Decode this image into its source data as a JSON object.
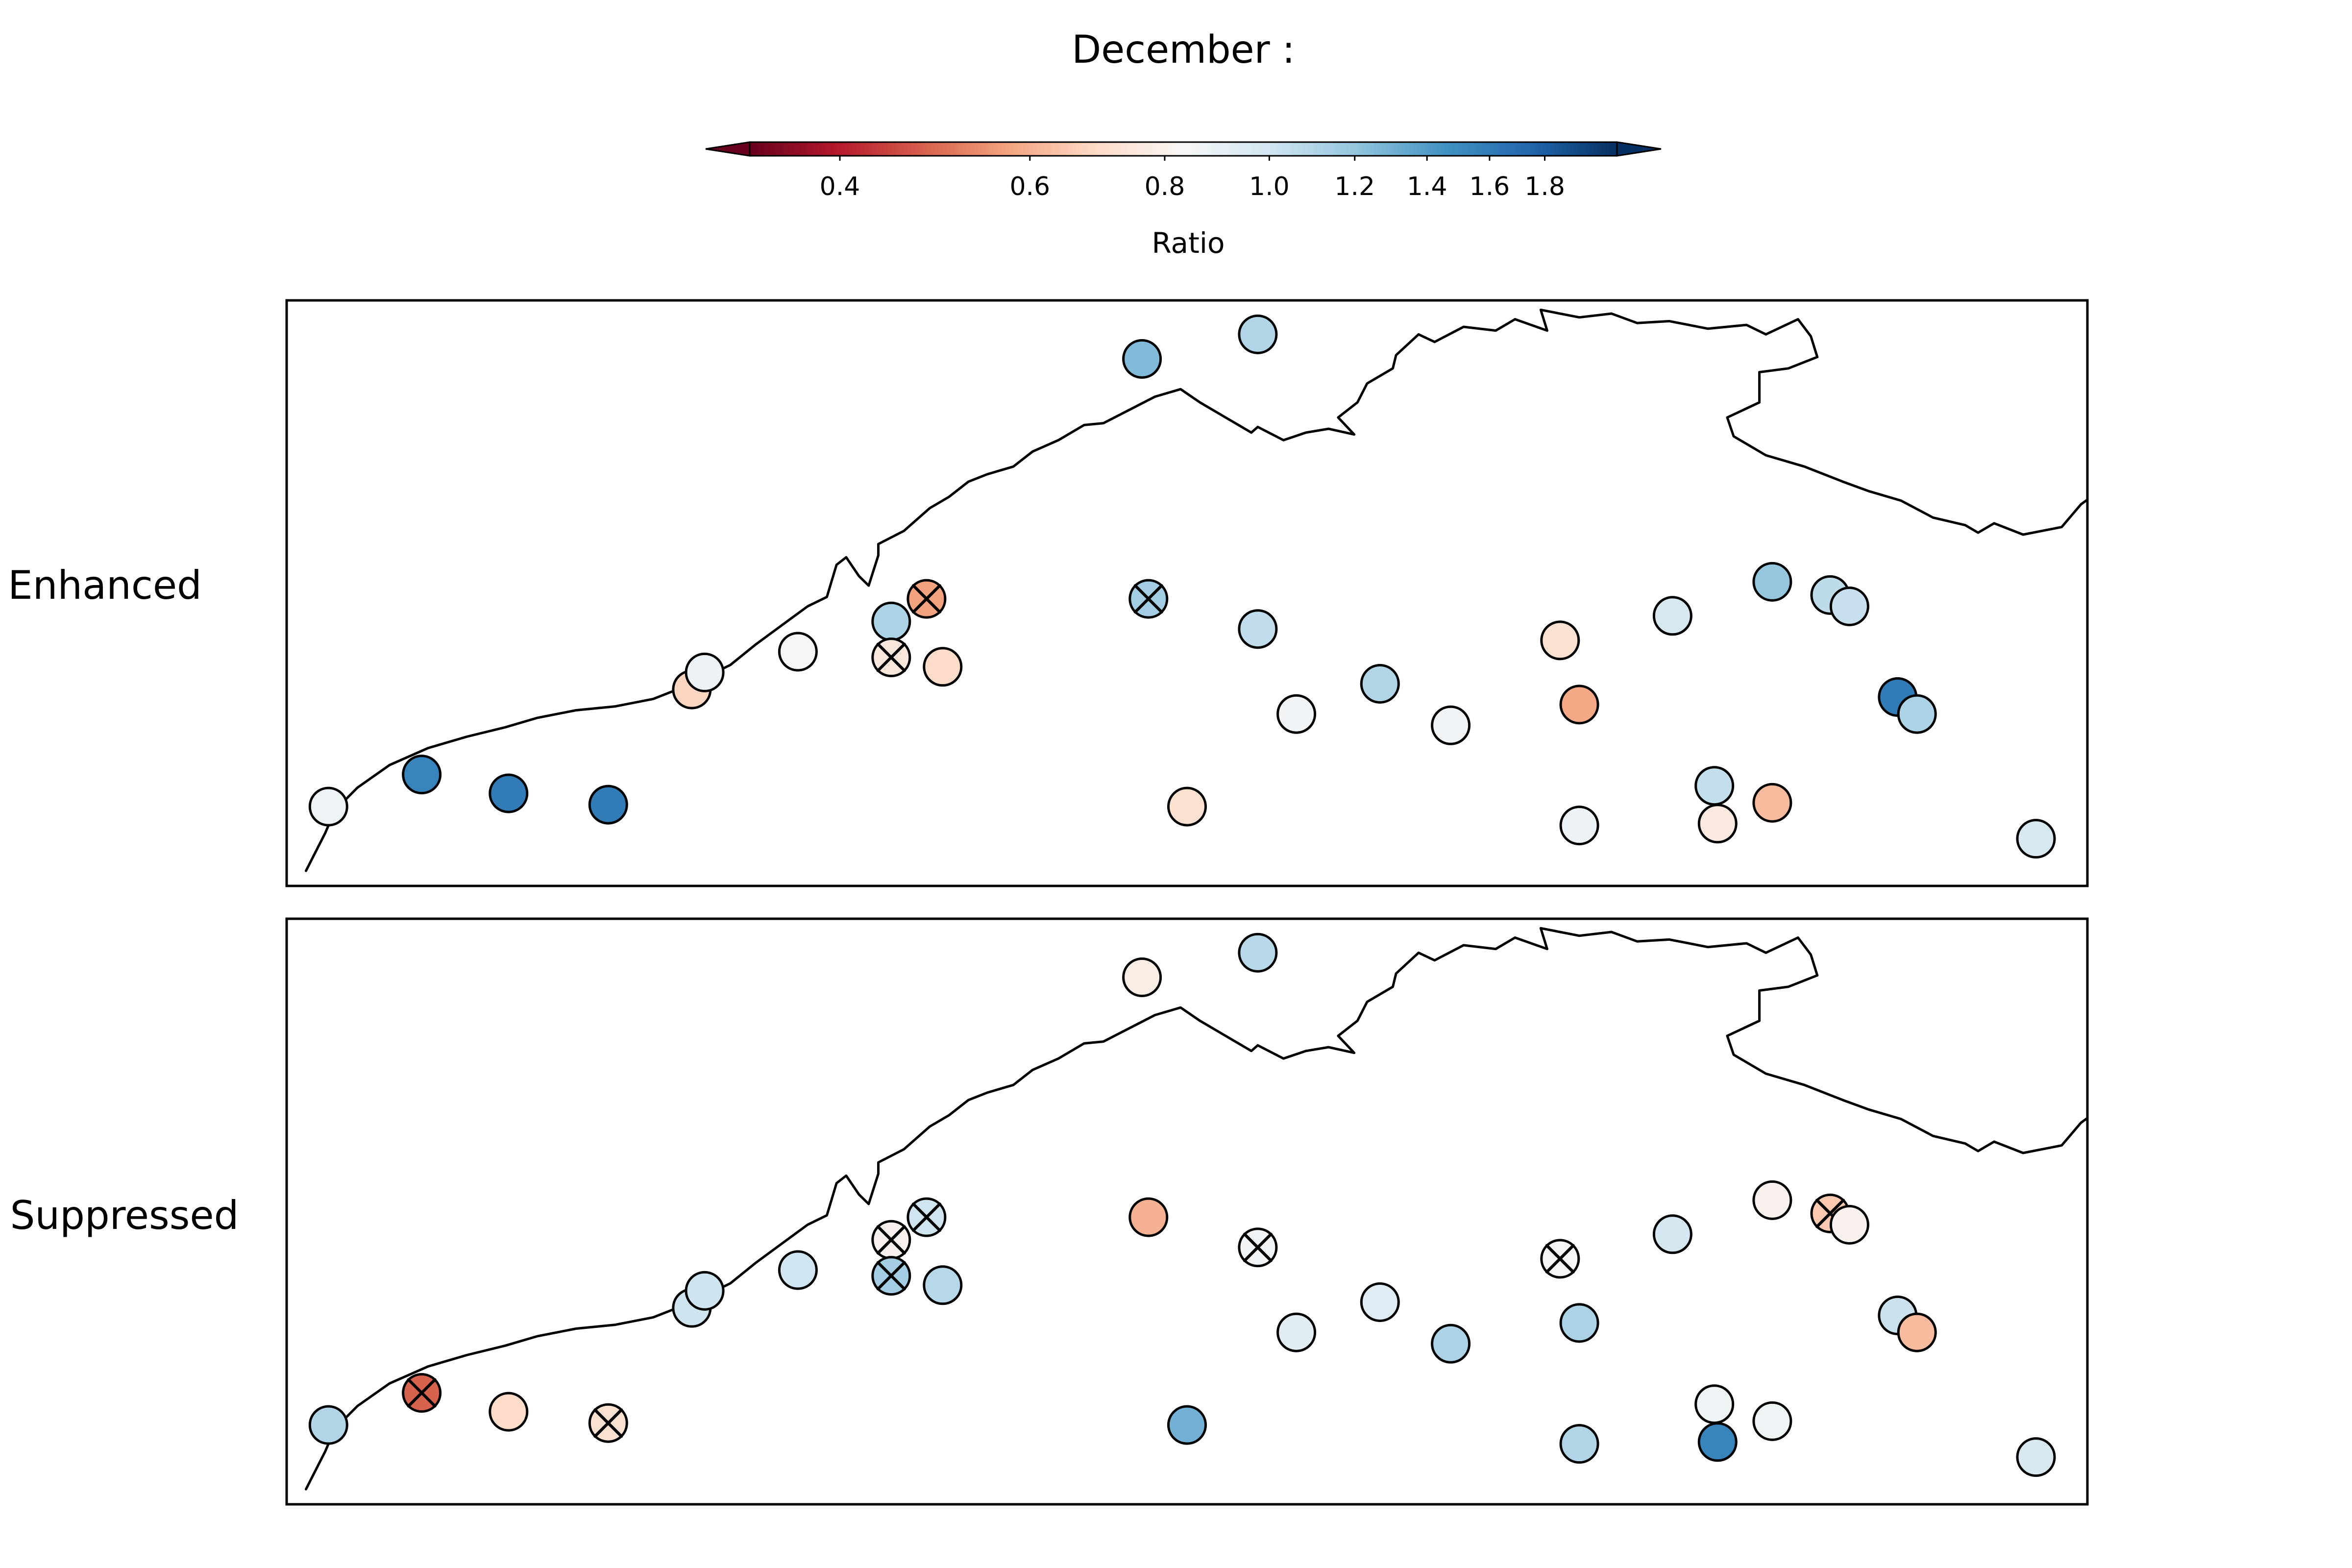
{
  "figure": {
    "title": "December :",
    "colorbar": {
      "label": "Ratio",
      "ticks": [
        "0.4",
        "0.6",
        "0.8",
        "1.0",
        "1.2",
        "1.4",
        "1.6",
        "1.8"
      ],
      "tick_values": [
        0.4,
        0.6,
        0.8,
        1.0,
        1.2,
        1.4,
        1.6,
        1.8
      ],
      "range": [
        0.33,
        2.1
      ],
      "scale": "log",
      "colormap": "RdBu",
      "extend": "both"
    },
    "colors": {
      "stops": [
        "#67001f",
        "#b2182b",
        "#d6604d",
        "#f4a582",
        "#fddbc7",
        "#f7f7f7",
        "#d1e5f0",
        "#92c5de",
        "#4393c3",
        "#2166ac",
        "#053061"
      ],
      "outline": "#000000",
      "background": "#ffffff"
    }
  },
  "panels": [
    {
      "label": "Enhanced",
      "stations": [
        {
          "lon": 113.65,
          "lat": -24.9,
          "ratio": 0.87,
          "hatched": false
        },
        {
          "lon": 115.1,
          "lat": -24.05,
          "ratio": 1.55,
          "hatched": false
        },
        {
          "lon": 116.45,
          "lat": -24.55,
          "ratio": 1.6,
          "hatched": false
        },
        {
          "lon": 118.0,
          "lat": -24.85,
          "ratio": 1.6,
          "hatched": false
        },
        {
          "lon": 119.3,
          "lat": -21.8,
          "ratio": 0.68,
          "hatched": false
        },
        {
          "lon": 119.5,
          "lat": -21.35,
          "ratio": 0.88,
          "hatched": false
        },
        {
          "lon": 120.95,
          "lat": -20.8,
          "ratio": 0.85,
          "hatched": false
        },
        {
          "lon": 122.4,
          "lat": -20.0,
          "ratio": 1.12,
          "hatched": false
        },
        {
          "lon": 122.4,
          "lat": -20.95,
          "ratio": 0.75,
          "hatched": true
        },
        {
          "lon": 122.95,
          "lat": -19.4,
          "ratio": 0.57,
          "hatched": true
        },
        {
          "lon": 123.2,
          "lat": -21.2,
          "ratio": 0.7,
          "hatched": false
        },
        {
          "lon": 126.3,
          "lat": -13.05,
          "ratio": 1.25,
          "hatched": false
        },
        {
          "lon": 126.4,
          "lat": -19.4,
          "ratio": 1.15,
          "hatched": true
        },
        {
          "lon": 128.1,
          "lat": -12.4,
          "ratio": 1.1,
          "hatched": false
        },
        {
          "lon": 127.0,
          "lat": -24.9,
          "ratio": 0.72,
          "hatched": false
        },
        {
          "lon": 128.1,
          "lat": -20.2,
          "ratio": 1.05,
          "hatched": false
        },
        {
          "lon": 128.7,
          "lat": -22.45,
          "ratio": 0.86,
          "hatched": false
        },
        {
          "lon": 130.0,
          "lat": -21.65,
          "ratio": 1.1,
          "hatched": false
        },
        {
          "lon": 131.1,
          "lat": -22.75,
          "ratio": 0.86,
          "hatched": false
        },
        {
          "lon": 132.8,
          "lat": -20.5,
          "ratio": 0.72,
          "hatched": false
        },
        {
          "lon": 133.1,
          "lat": -22.2,
          "ratio": 0.58,
          "hatched": false
        },
        {
          "lon": 133.1,
          "lat": -25.4,
          "ratio": 0.88,
          "hatched": false
        },
        {
          "lon": 134.55,
          "lat": -19.85,
          "ratio": 0.97,
          "hatched": false
        },
        {
          "lon": 135.2,
          "lat": -24.35,
          "ratio": 1.04,
          "hatched": false
        },
        {
          "lon": 135.25,
          "lat": -25.35,
          "ratio": 0.76,
          "hatched": false
        },
        {
          "lon": 136.1,
          "lat": -24.8,
          "ratio": 0.62,
          "hatched": false
        },
        {
          "lon": 136.1,
          "lat": -18.95,
          "ratio": 1.2,
          "hatched": false
        },
        {
          "lon": 137.0,
          "lat": -19.3,
          "ratio": 1.06,
          "hatched": false
        },
        {
          "lon": 137.3,
          "lat": -19.6,
          "ratio": 1.03,
          "hatched": false
        },
        {
          "lon": 138.05,
          "lat": -22.0,
          "ratio": 1.6,
          "hatched": false
        },
        {
          "lon": 138.35,
          "lat": -22.45,
          "ratio": 1.12,
          "hatched": false
        },
        {
          "lon": 140.2,
          "lat": -25.75,
          "ratio": 0.97,
          "hatched": false
        }
      ]
    },
    {
      "label": "Suppressed",
      "stations": [
        {
          "lon": 113.65,
          "lat": -24.9,
          "ratio": 1.1,
          "hatched": false
        },
        {
          "lon": 115.1,
          "lat": -24.05,
          "ratio": 0.48,
          "hatched": true
        },
        {
          "lon": 116.45,
          "lat": -24.55,
          "ratio": 0.7,
          "hatched": false
        },
        {
          "lon": 118.0,
          "lat": -24.85,
          "ratio": 0.72,
          "hatched": true
        },
        {
          "lon": 119.3,
          "lat": -21.8,
          "ratio": 1.01,
          "hatched": false
        },
        {
          "lon": 119.5,
          "lat": -21.35,
          "ratio": 1.01,
          "hatched": false
        },
        {
          "lon": 120.95,
          "lat": -20.8,
          "ratio": 1.0,
          "hatched": false
        },
        {
          "lon": 122.4,
          "lat": -20.0,
          "ratio": 0.8,
          "hatched": true
        },
        {
          "lon": 122.4,
          "lat": -20.95,
          "ratio": 1.15,
          "hatched": true
        },
        {
          "lon": 122.95,
          "lat": -19.4,
          "ratio": 1.0,
          "hatched": true
        },
        {
          "lon": 123.2,
          "lat": -21.2,
          "ratio": 1.08,
          "hatched": false
        },
        {
          "lon": 126.3,
          "lat": -13.05,
          "ratio": 0.78,
          "hatched": false
        },
        {
          "lon": 126.4,
          "lat": -19.4,
          "ratio": 0.6,
          "hatched": false
        },
        {
          "lon": 128.1,
          "lat": -12.4,
          "ratio": 1.08,
          "hatched": false
        },
        {
          "lon": 127.0,
          "lat": -24.9,
          "ratio": 1.3,
          "hatched": false
        },
        {
          "lon": 128.1,
          "lat": -20.2,
          "ratio": 0.86,
          "hatched": true
        },
        {
          "lon": 128.7,
          "lat": -22.45,
          "ratio": 0.92,
          "hatched": false
        },
        {
          "lon": 130.0,
          "lat": -21.65,
          "ratio": 0.93,
          "hatched": false
        },
        {
          "lon": 131.1,
          "lat": -22.75,
          "ratio": 1.12,
          "hatched": false
        },
        {
          "lon": 132.8,
          "lat": -20.5,
          "ratio": 0.82,
          "hatched": true
        },
        {
          "lon": 133.1,
          "lat": -22.2,
          "ratio": 1.12,
          "hatched": false
        },
        {
          "lon": 133.1,
          "lat": -25.4,
          "ratio": 1.1,
          "hatched": false
        },
        {
          "lon": 134.55,
          "lat": -19.85,
          "ratio": 0.98,
          "hatched": false
        },
        {
          "lon": 135.2,
          "lat": -24.35,
          "ratio": 0.87,
          "hatched": false
        },
        {
          "lon": 135.25,
          "lat": -25.35,
          "ratio": 1.55,
          "hatched": false
        },
        {
          "lon": 136.1,
          "lat": -24.8,
          "ratio": 0.87,
          "hatched": false
        },
        {
          "lon": 136.1,
          "lat": -18.95,
          "ratio": 0.8,
          "hatched": false
        },
        {
          "lon": 137.0,
          "lat": -19.3,
          "ratio": 0.65,
          "hatched": true
        },
        {
          "lon": 137.3,
          "lat": -19.6,
          "ratio": 0.8,
          "hatched": false
        },
        {
          "lon": 138.05,
          "lat": -22.0,
          "ratio": 1.02,
          "hatched": false
        },
        {
          "lon": 138.35,
          "lat": -22.45,
          "ratio": 0.62,
          "hatched": false
        },
        {
          "lon": 140.2,
          "lat": -25.75,
          "ratio": 0.97,
          "hatched": false
        }
      ]
    }
  ]
}
